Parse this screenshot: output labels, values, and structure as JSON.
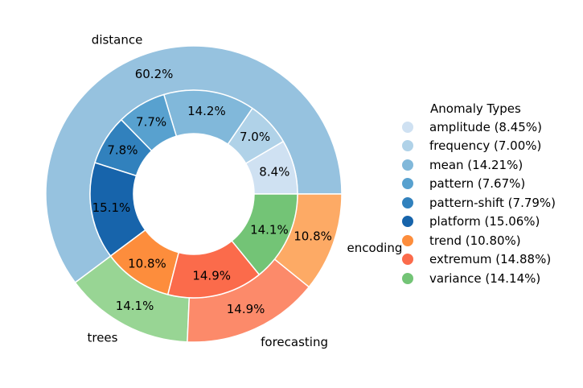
{
  "chart_data": {
    "type": "pie",
    "legend_title": "Anomaly Types",
    "legend_placement": "right",
    "outer": [
      {
        "label": "distance",
        "value": 60.2,
        "pct_label": "60.2%",
        "color": "#96c2df"
      },
      {
        "label": "trees",
        "value": 14.1,
        "pct_label": "14.1%",
        "color": "#98d594"
      },
      {
        "label": "forecasting",
        "value": 14.9,
        "pct_label": "14.9%",
        "color": "#fc8a6a"
      },
      {
        "label": "encoding",
        "value": 10.8,
        "pct_label": "10.8%",
        "color": "#fdaa65"
      }
    ],
    "inner": [
      {
        "name": "amplitude",
        "value": 8.45,
        "pct_label": "8.4%",
        "legend": "amplitude (8.45%)",
        "color": "#cfe1f2"
      },
      {
        "name": "frequency",
        "value": 7.0,
        "pct_label": "7.0%",
        "legend": "frequency (7.00%)",
        "color": "#b0d2e8"
      },
      {
        "name": "mean",
        "value": 14.21,
        "pct_label": "14.2%",
        "legend": "mean (14.21%)",
        "color": "#81b8da"
      },
      {
        "name": "pattern",
        "value": 7.67,
        "pct_label": "7.7%",
        "legend": "pattern (7.67%)",
        "color": "#58a1cf"
      },
      {
        "name": "pattern-shift",
        "value": 7.79,
        "pct_label": "7.8%",
        "legend": "pattern-shift (7.79%)",
        "color": "#3181bd"
      },
      {
        "name": "platform",
        "value": 15.06,
        "pct_label": "15.1%",
        "legend": "platform (15.06%)",
        "color": "#1764ab"
      },
      {
        "name": "trend",
        "value": 10.8,
        "pct_label": "10.8%",
        "legend": "trend (10.80%)",
        "color": "#fd8d3c"
      },
      {
        "name": "extremum",
        "value": 14.88,
        "pct_label": "14.9%",
        "legend": "extremum (14.88%)",
        "color": "#fb6b4b"
      },
      {
        "name": "variance",
        "value": 14.14,
        "pct_label": "14.1%",
        "legend": "variance (14.14%)",
        "color": "#73c476"
      }
    ]
  }
}
